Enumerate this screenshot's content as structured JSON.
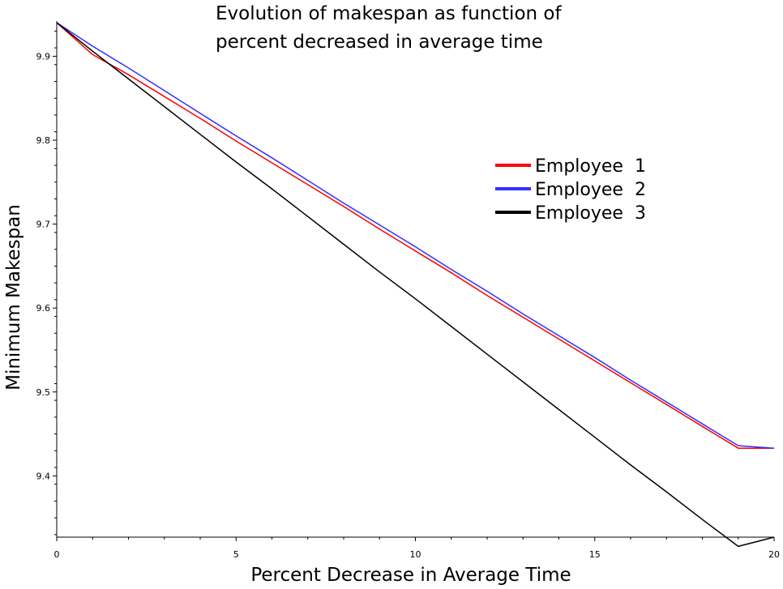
{
  "chart_data": {
    "type": "line",
    "title_lines": [
      "Evolution of makespan as function of",
      "percent decreased in average time"
    ],
    "xlabel": "Percent Decrease in Average Time",
    "ylabel": "Minimum Makespan",
    "xlim": [
      0,
      20
    ],
    "ylim": [
      9.327,
      9.94
    ],
    "xticks": [
      0,
      5,
      10,
      15,
      20
    ],
    "yticks": [
      9.4,
      9.5,
      9.6,
      9.7,
      9.8,
      9.9
    ],
    "xtick_labels": [
      "0",
      "5",
      "10",
      "15",
      "20"
    ],
    "ytick_labels": [
      "9.4",
      "9.5",
      "9.6",
      "9.7",
      "9.8",
      "9.9"
    ],
    "grid": false,
    "legend_position": "right",
    "x": [
      0,
      1,
      2,
      3,
      4,
      5,
      6,
      7,
      8,
      9,
      10,
      11,
      12,
      13,
      14,
      15,
      16,
      17,
      18,
      19,
      20
    ],
    "series": [
      {
        "name": "Employee  1",
        "color": "#ff0000",
        "values": [
          9.94,
          9.902,
          9.878,
          9.852,
          9.826,
          9.799,
          9.773,
          9.747,
          9.721,
          9.694,
          9.668,
          9.642,
          9.615,
          9.589,
          9.563,
          9.537,
          9.511,
          9.485,
          9.459,
          9.433,
          9.433
        ]
      },
      {
        "name": "Employee  2",
        "color": "#3030ff",
        "values": [
          9.94,
          9.912,
          9.886,
          9.859,
          9.832,
          9.805,
          9.779,
          9.752,
          9.725,
          9.699,
          9.673,
          9.646,
          9.62,
          9.593,
          9.567,
          9.541,
          9.514,
          9.488,
          9.462,
          9.436,
          9.433
        ]
      },
      {
        "name": "Employee  3",
        "color": "#000000",
        "values": [
          9.94,
          9.906,
          9.873,
          9.84,
          9.807,
          9.774,
          9.742,
          9.709,
          9.676,
          9.643,
          9.611,
          9.578,
          9.545,
          9.512,
          9.479,
          9.446,
          9.413,
          9.381,
          9.348,
          9.316,
          9.327
        ]
      }
    ]
  }
}
